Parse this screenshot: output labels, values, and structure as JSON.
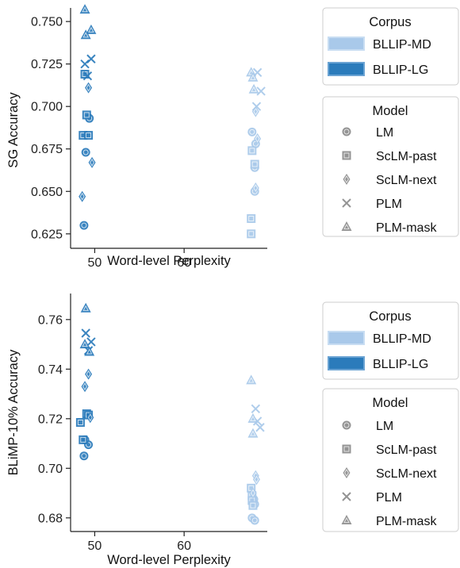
{
  "colors": {
    "md": "#a9c9ea",
    "lg": "#2b7bbb",
    "marker_gray": "#8c8c8c",
    "axis": "#222222",
    "legend_border": "#cccccc"
  },
  "legend_corpus": {
    "title": "Corpus",
    "items": [
      "BLLIP-MD",
      "BLLIP-LG"
    ]
  },
  "legend_model": {
    "title": "Model",
    "items": [
      "LM",
      "ScLM-past",
      "ScLM-next",
      "PLM",
      "PLM-mask"
    ]
  },
  "chart_data": [
    {
      "type": "scatter",
      "title": "",
      "xlabel": "Word-level Perplexity",
      "ylabel": "SG Accuracy",
      "xlim": [
        47.3,
        69.3
      ],
      "ylim": [
        0.6165,
        0.758
      ],
      "xticks": [
        50,
        60
      ],
      "xtick_labels": [
        "50",
        "60"
      ],
      "yticks": [
        0.625,
        0.65,
        0.675,
        0.7,
        0.725,
        0.75
      ],
      "ytick_labels": [
        "0.625",
        "0.650",
        "0.675",
        "0.700",
        "0.725",
        "0.750"
      ],
      "grid": false,
      "legend_position": "right",
      "series": [
        {
          "corpus": "BLLIP-MD",
          "model": "LM",
          "marker": "circle",
          "points": [
            [
              67.6,
              0.685
            ],
            [
              68.0,
              0.678
            ],
            [
              67.9,
              0.664
            ],
            [
              67.9,
              0.65
            ]
          ]
        },
        {
          "corpus": "BLLIP-MD",
          "model": "ScLM-past",
          "marker": "square",
          "points": [
            [
              67.6,
              0.674
            ],
            [
              67.9,
              0.666
            ],
            [
              67.5,
              0.634
            ],
            [
              67.5,
              0.625
            ]
          ]
        },
        {
          "corpus": "BLLIP-MD",
          "model": "ScLM-next",
          "marker": "diamond",
          "points": [
            [
              68.0,
              0.697
            ],
            [
              68.2,
              0.681
            ],
            [
              68.0,
              0.652
            ]
          ]
        },
        {
          "corpus": "BLLIP-MD",
          "model": "PLM",
          "marker": "x",
          "points": [
            [
              68.2,
              0.72
            ],
            [
              68.6,
              0.709
            ],
            [
              68.1,
              0.7
            ]
          ]
        },
        {
          "corpus": "BLLIP-MD",
          "model": "PLM-mask",
          "marker": "triangle",
          "points": [
            [
              67.5,
              0.72
            ],
            [
              67.7,
              0.717
            ],
            [
              67.8,
              0.71
            ]
          ]
        },
        {
          "corpus": "BLLIP-LG",
          "model": "LM",
          "marker": "circle",
          "points": [
            [
              49.4,
              0.693
            ],
            [
              49.0,
              0.673
            ],
            [
              48.8,
              0.63
            ]
          ]
        },
        {
          "corpus": "BLLIP-LG",
          "model": "ScLM-past",
          "marker": "square",
          "points": [
            [
              48.9,
              0.719
            ],
            [
              49.1,
              0.695
            ],
            [
              48.7,
              0.683
            ],
            [
              49.3,
              0.683
            ]
          ]
        },
        {
          "corpus": "BLLIP-LG",
          "model": "ScLM-next",
          "marker": "diamond",
          "points": [
            [
              49.3,
              0.711
            ],
            [
              49.7,
              0.667
            ],
            [
              48.6,
              0.647
            ]
          ]
        },
        {
          "corpus": "BLLIP-LG",
          "model": "PLM",
          "marker": "x",
          "points": [
            [
              49.6,
              0.728
            ],
            [
              48.9,
              0.725
            ],
            [
              49.2,
              0.718
            ]
          ]
        },
        {
          "corpus": "BLLIP-LG",
          "model": "PLM-mask",
          "marker": "triangle",
          "points": [
            [
              48.9,
              0.757
            ],
            [
              49.6,
              0.745
            ],
            [
              49.0,
              0.742
            ]
          ]
        }
      ]
    },
    {
      "type": "scatter",
      "title": "",
      "xlabel": "Word-level Perplexity",
      "ylabel": "BLiMP-10% Accuracy",
      "xlim": [
        47.3,
        69.3
      ],
      "ylim": [
        0.6745,
        0.7705
      ],
      "xticks": [
        50,
        60
      ],
      "xtick_labels": [
        "50",
        "60"
      ],
      "yticks": [
        0.68,
        0.7,
        0.72,
        0.74,
        0.76
      ],
      "ytick_labels": [
        "0.68",
        "0.70",
        "0.72",
        "0.74",
        "0.76"
      ],
      "grid": false,
      "legend_position": "right",
      "series": [
        {
          "corpus": "BLLIP-MD",
          "model": "LM",
          "marker": "circle",
          "points": [
            [
              67.8,
              0.6875
            ],
            [
              67.9,
              0.6855
            ],
            [
              67.6,
              0.68
            ],
            [
              67.9,
              0.679
            ]
          ]
        },
        {
          "corpus": "BLLIP-MD",
          "model": "ScLM-past",
          "marker": "square",
          "points": [
            [
              67.5,
              0.692
            ],
            [
              67.6,
              0.689
            ],
            [
              67.6,
              0.687
            ],
            [
              67.7,
              0.685
            ]
          ]
        },
        {
          "corpus": "BLLIP-MD",
          "model": "ScLM-next",
          "marker": "diamond",
          "points": [
            [
              68.0,
              0.697
            ],
            [
              68.1,
              0.6955
            ],
            [
              67.7,
              0.69
            ]
          ]
        },
        {
          "corpus": "BLLIP-MD",
          "model": "PLM",
          "marker": "x",
          "points": [
            [
              68.0,
              0.724
            ],
            [
              68.2,
              0.719
            ],
            [
              68.5,
              0.7165
            ]
          ]
        },
        {
          "corpus": "BLLIP-MD",
          "model": "PLM-mask",
          "marker": "triangle",
          "points": [
            [
              67.5,
              0.7355
            ],
            [
              67.7,
              0.72
            ],
            [
              67.7,
              0.714
            ]
          ]
        },
        {
          "corpus": "BLLIP-LG",
          "model": "LM",
          "marker": "circle",
          "points": [
            [
              49.3,
              0.7095
            ],
            [
              48.9,
              0.7115
            ],
            [
              48.8,
              0.705
            ]
          ]
        },
        {
          "corpus": "BLLIP-LG",
          "model": "ScLM-past",
          "marker": "square",
          "points": [
            [
              48.4,
              0.7185
            ],
            [
              49.1,
              0.722
            ],
            [
              48.7,
              0.7115
            ],
            [
              49.3,
              0.7215
            ]
          ]
        },
        {
          "corpus": "BLLIP-LG",
          "model": "ScLM-next",
          "marker": "diamond",
          "points": [
            [
              49.3,
              0.738
            ],
            [
              48.9,
              0.733
            ],
            [
              49.5,
              0.7205
            ]
          ]
        },
        {
          "corpus": "BLLIP-LG",
          "model": "PLM",
          "marker": "x",
          "points": [
            [
              49.0,
              0.7545
            ],
            [
              49.6,
              0.751
            ],
            [
              49.3,
              0.7475
            ]
          ]
        },
        {
          "corpus": "BLLIP-LG",
          "model": "PLM-mask",
          "marker": "triangle",
          "points": [
            [
              49.0,
              0.7645
            ],
            [
              49.4,
              0.747
            ],
            [
              48.9,
              0.75
            ]
          ]
        }
      ]
    }
  ]
}
